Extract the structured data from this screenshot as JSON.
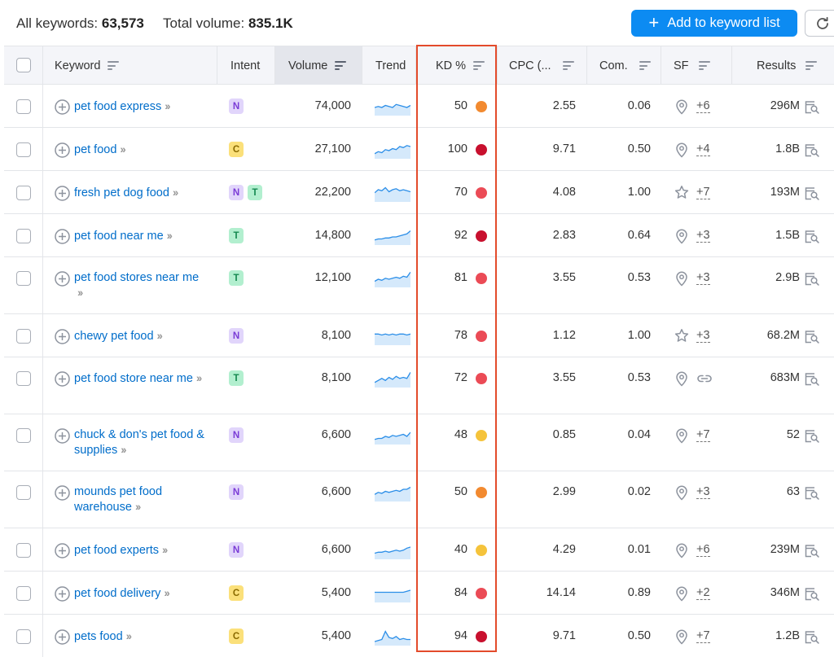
{
  "summary": {
    "keywords_label": "All keywords:",
    "keywords_count": "63,573",
    "volume_label": "Total volume:",
    "volume_value": "835.1K"
  },
  "toolbar": {
    "add_label": "Add to keyword list"
  },
  "columns": [
    "Keyword",
    "Intent",
    "Volume",
    "Trend",
    "KD %",
    "CPC (...",
    "Com.",
    "SF",
    "Results"
  ],
  "colors": {
    "accent": "#0c8bf2",
    "link": "#006dca",
    "kd_hard": "#c8102e",
    "kd_red": "#eb4b56",
    "kd_orange": "#f28a30",
    "kd_yellow": "#f5c33b",
    "highlight_frame": "#e34b2b"
  },
  "rows": [
    {
      "keyword": "pet food express",
      "intents": [
        "N"
      ],
      "volume": "74,000",
      "trend": [
        8,
        9,
        8,
        10,
        9,
        8,
        11,
        10,
        9,
        8,
        10
      ],
      "kd": "50",
      "kd_level": "orange",
      "cpc": "2.55",
      "com": "0.06",
      "sf_icon": "location-pin-icon",
      "sf_more": "+6",
      "results": "296M"
    },
    {
      "keyword": "pet food",
      "intents": [
        "C"
      ],
      "volume": "27,100",
      "trend": [
        5,
        7,
        6,
        9,
        8,
        10,
        9,
        12,
        11,
        13,
        12
      ],
      "kd": "100",
      "kd_level": "hard",
      "cpc": "9.71",
      "com": "0.50",
      "sf_icon": "location-pin-icon",
      "sf_more": "+4",
      "results": "1.8B"
    },
    {
      "keyword": "fresh pet dog food",
      "intents": [
        "N",
        "T"
      ],
      "volume": "22,200",
      "trend": [
        9,
        12,
        11,
        14,
        10,
        12,
        13,
        11,
        12,
        11,
        10
      ],
      "kd": "70",
      "kd_level": "red",
      "cpc": "4.08",
      "com": "1.00",
      "sf_icon": "star-icon",
      "sf_more": "+7",
      "results": "193M"
    },
    {
      "keyword": "pet food near me",
      "intents": [
        "T"
      ],
      "volume": "14,800",
      "trend": [
        5,
        6,
        6,
        7,
        7,
        8,
        8,
        9,
        10,
        11,
        14
      ],
      "kd": "92",
      "kd_level": "hard",
      "cpc": "2.83",
      "com": "0.64",
      "sf_icon": "location-pin-icon",
      "sf_more": "+3",
      "results": "1.5B"
    },
    {
      "keyword": "pet food stores near me",
      "intents": [
        "T"
      ],
      "volume": "12,100",
      "trend": [
        6,
        8,
        7,
        9,
        8,
        9,
        10,
        9,
        11,
        10,
        15
      ],
      "kd": "81",
      "kd_level": "red",
      "cpc": "3.55",
      "com": "0.53",
      "sf_icon": "location-pin-icon",
      "sf_more": "+3",
      "results": "2.9B"
    },
    {
      "keyword": "chewy pet food",
      "intents": [
        "N"
      ],
      "volume": "8,100",
      "trend": [
        11,
        11,
        10,
        11,
        10,
        11,
        10,
        11,
        11,
        10,
        11
      ],
      "kd": "78",
      "kd_level": "red",
      "cpc": "1.12",
      "com": "1.00",
      "sf_icon": "star-icon",
      "sf_more": "+3",
      "results": "68.2M"
    },
    {
      "keyword": "pet food store near me",
      "intents": [
        "T"
      ],
      "volume": "8,100",
      "trend": [
        5,
        7,
        9,
        7,
        10,
        8,
        11,
        9,
        10,
        9,
        15
      ],
      "kd": "72",
      "kd_level": "red",
      "cpc": "3.55",
      "com": "0.53",
      "sf_icon": "location-pin-icon",
      "sf_more": "",
      "results": "683M"
    },
    {
      "keyword": "chuck & don's pet food & supplies",
      "intents": [
        "N"
      ],
      "volume": "6,600",
      "trend": [
        5,
        6,
        6,
        8,
        7,
        9,
        8,
        9,
        10,
        8,
        12
      ],
      "kd": "48",
      "kd_level": "yellow",
      "cpc": "0.85",
      "com": "0.04",
      "sf_icon": "location-pin-icon",
      "sf_more": "+7",
      "results": "52"
    },
    {
      "keyword": "mounds pet food warehouse",
      "intents": [
        "N"
      ],
      "volume": "6,600",
      "trend": [
        7,
        9,
        8,
        10,
        9,
        10,
        11,
        10,
        12,
        12,
        14
      ],
      "kd": "50",
      "kd_level": "orange",
      "cpc": "2.99",
      "com": "0.02",
      "sf_icon": "location-pin-icon",
      "sf_more": "+3",
      "results": "63"
    },
    {
      "keyword": "pet food experts",
      "intents": [
        "N"
      ],
      "volume": "6,600",
      "trend": [
        6,
        7,
        7,
        8,
        7,
        8,
        9,
        8,
        9,
        11,
        12
      ],
      "kd": "40",
      "kd_level": "yellow",
      "cpc": "4.29",
      "com": "0.01",
      "sf_icon": "location-pin-icon",
      "sf_more": "+6",
      "results": "239M"
    },
    {
      "keyword": "pet food delivery",
      "intents": [
        "C"
      ],
      "volume": "5,400",
      "trend": [
        10,
        10,
        10,
        10,
        10,
        10,
        10,
        10,
        10,
        11,
        12
      ],
      "kd": "84",
      "kd_level": "red",
      "cpc": "14.14",
      "com": "0.89",
      "sf_icon": "location-pin-icon",
      "sf_more": "+2",
      "results": "346M"
    },
    {
      "keyword": "pets food",
      "intents": [
        "C"
      ],
      "volume": "5,400",
      "trend": [
        4,
        5,
        6,
        14,
        8,
        7,
        9,
        6,
        7,
        6,
        6
      ],
      "kd": "94",
      "kd_level": "hard",
      "cpc": "9.71",
      "com": "0.50",
      "sf_icon": "location-pin-icon",
      "sf_more": "+7",
      "results": "1.2B"
    }
  ]
}
